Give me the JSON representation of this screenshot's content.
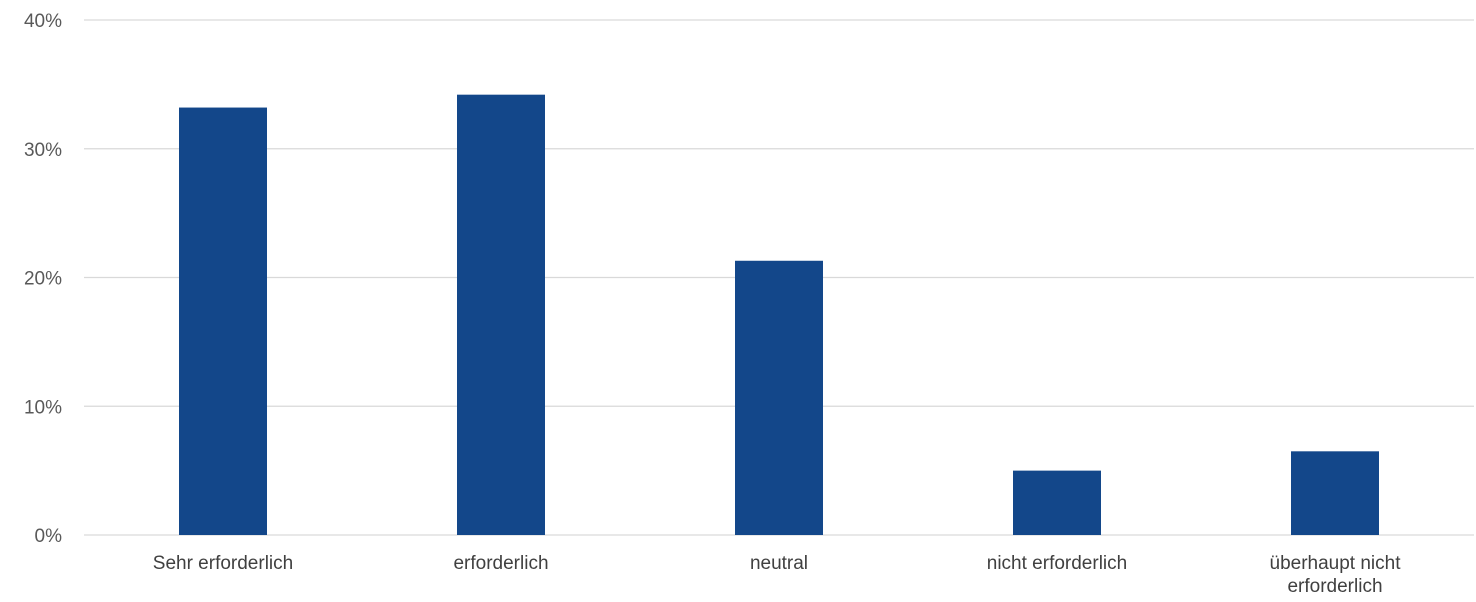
{
  "chart_data": {
    "type": "bar",
    "categories": [
      [
        "Sehr erforderlich"
      ],
      [
        "erforderlich"
      ],
      [
        "neutral"
      ],
      [
        "nicht erforderlich"
      ],
      [
        "überhaupt nicht",
        "erforderlich"
      ]
    ],
    "values": [
      33.2,
      34.2,
      21.3,
      5.0,
      6.5
    ],
    "value_unit": "percent",
    "title": "",
    "xlabel": "",
    "ylabel": "",
    "ylim": [
      0,
      40
    ],
    "yticks": [
      "0%",
      "10%",
      "20%",
      "30%",
      "40%"
    ],
    "grid": true,
    "legend": "none",
    "bar_color": "#13478a"
  }
}
